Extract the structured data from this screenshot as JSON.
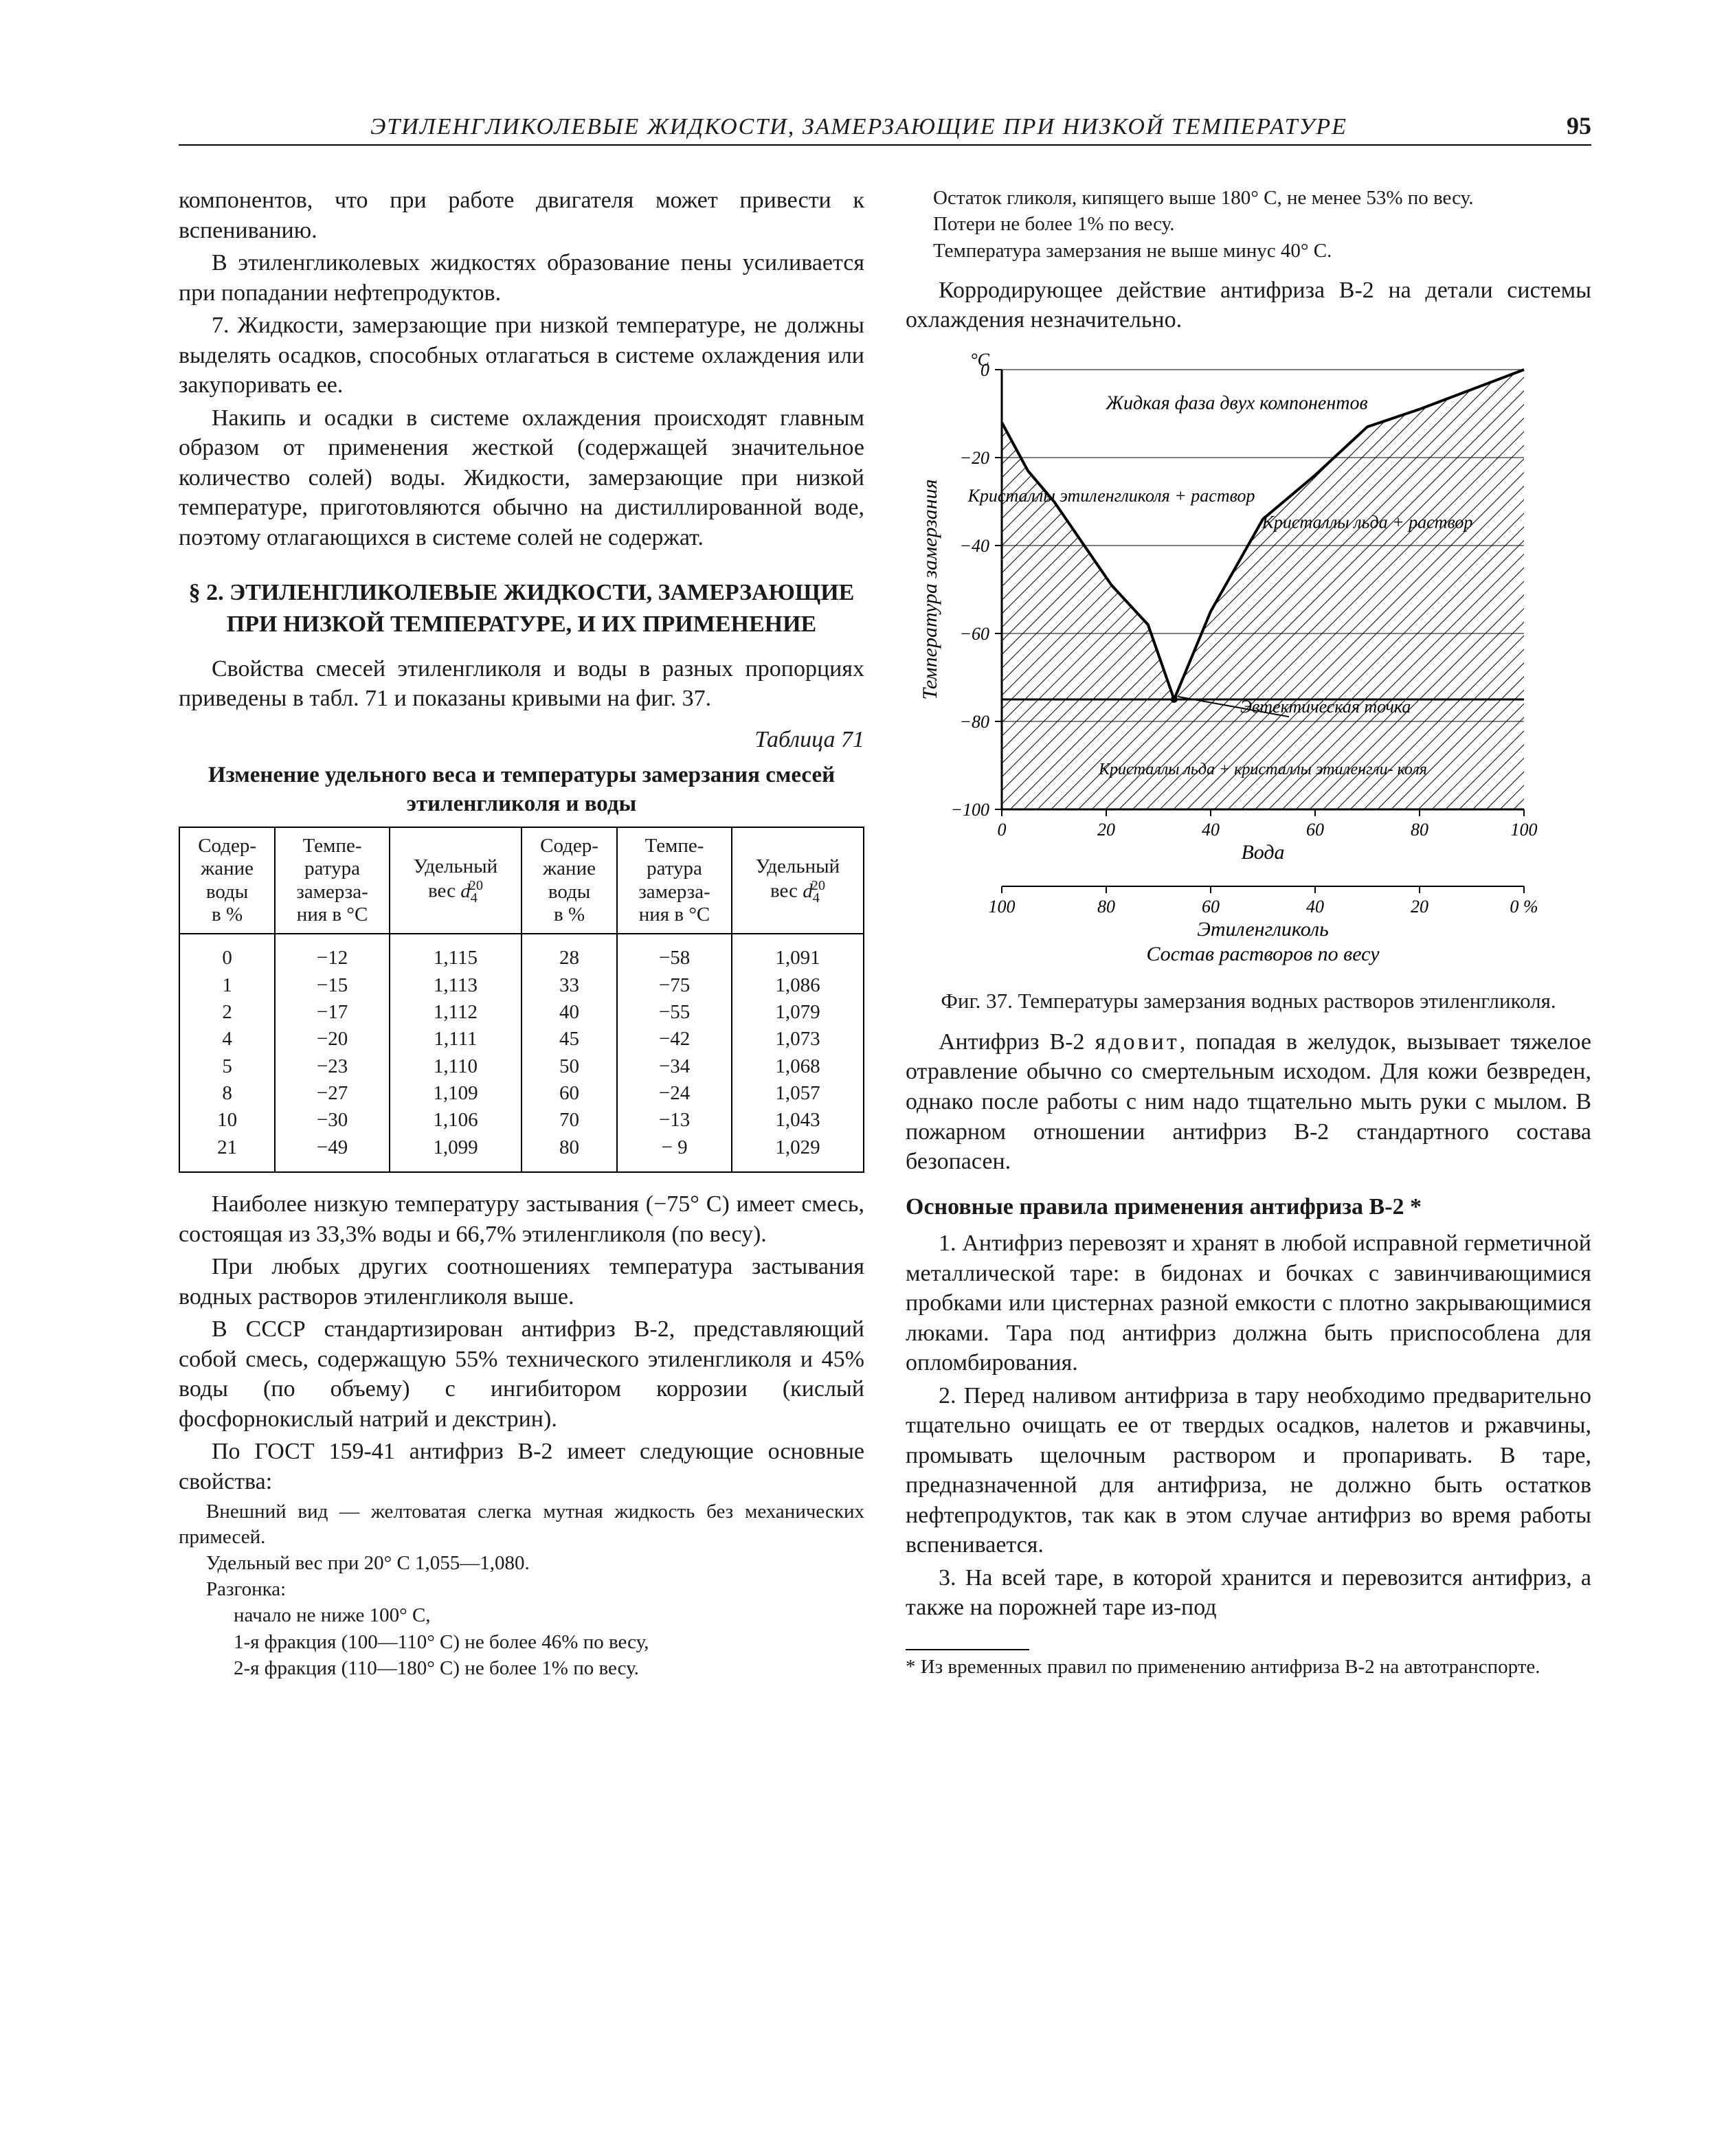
{
  "page": {
    "running_title": "ЭТИЛЕНГЛИКОЛЕВЫЕ ЖИДКОСТИ, ЗАМЕРЗАЮЩИЕ ПРИ НИЗКОЙ ТЕМПЕРАТУРЕ",
    "number": "95"
  },
  "left": {
    "p1": "компонентов, что при работе двигателя может привести к вспениванию.",
    "p2": "В этиленгликолевых жидкостях образование пены усиливается при попадании нефтепродуктов.",
    "p3": "7. Жидкости, замерзающие при низкой температуре, не должны выделять осадков, способных отлагаться в системе охлаждения или закупоривать ее.",
    "p4": "Накипь и осадки в системе охлаждения происходят главным образом от применения жесткой (содержащей значительное количество солей) воды. Жидкости, замерзающие при низкой температуре, приготовляются обычно на дистиллированной воде, поэтому отлагающихся в системе солей не содержат.",
    "section": "§ 2. ЭТИЛЕНГЛИКОЛЕВЫЕ ЖИДКОСТИ, ЗАМЕРЗАЮЩИЕ ПРИ НИЗКОЙ ТЕМПЕРАТУРЕ, И ИХ ПРИМЕНЕНИЕ",
    "p5": "Свойства смесей этиленгликоля и воды в разных пропорциях приведены в табл. 71 и показаны кривыми на фиг. 37.",
    "table_num": "Таблица 71",
    "table_caption": "Изменение удельного веса и температуры замерзания смесей этиленгликоля и воды",
    "headers": {
      "c1": "Содер-\nжание\nводы\nв %",
      "c2": "Темпе-\nратура\nзамерза-\nния в °C",
      "c3_pre": "Удельный\nвес ",
      "c4": "Содер-\nжание\nводы\nв %",
      "c5": "Темпе-\nратура\nзамерза-\nния в °C",
      "c6_pre": "Удельный\nвес "
    },
    "rows": [
      [
        "0",
        "−12",
        "1,115",
        "28",
        "−58",
        "1,091"
      ],
      [
        "1",
        "−15",
        "1,113",
        "33",
        "−75",
        "1,086"
      ],
      [
        "2",
        "−17",
        "1,112",
        "40",
        "−55",
        "1,079"
      ],
      [
        "4",
        "−20",
        "1,111",
        "45",
        "−42",
        "1,073"
      ],
      [
        "5",
        "−23",
        "1,110",
        "50",
        "−34",
        "1,068"
      ],
      [
        "8",
        "−27",
        "1,109",
        "60",
        "−24",
        "1,057"
      ],
      [
        "10",
        "−30",
        "1,106",
        "70",
        "−13",
        "1,043"
      ],
      [
        "21",
        "−49",
        "1,099",
        "80",
        "− 9",
        "1,029"
      ]
    ],
    "p6a": "Наиболее низкую температуру застывания (−75° C) имеет смесь, состоящая из 33,3% воды и 66,7% этиленгликоля (по весу).",
    "p7": "При любых других соотношениях температура застывания водных растворов этиленгликоля выше.",
    "p8": "В СССР стандартизирован антифриз В-2, представляющий собой смесь, содержащую 55% технического этиленгликоля и 45% воды (по объему) с ингибитором коррозии (кислый фосфорнокислый натрий и декстрин).",
    "p9": "По ГОСТ 159-41 антифриз В-2 имеет следующие основные свойства:",
    "small": {
      "s1": "Внешний вид — желтоватая слегка мутная жидкость без механических примесей.",
      "s2": "Удельный вес при 20° C 1,055—1,080.",
      "s3": "Разгонка:",
      "s4": "начало не ниже 100° C,",
      "s5": "1-я фракция (100—110° C) не более 46% по весу,",
      "s6": "2-я фракция (110—180° C) не более 1% по весу."
    }
  },
  "right": {
    "small_top": {
      "s1": "Остаток гликоля, кипящего выше 180° C, не менее 53% по весу.",
      "s2": "Потери не более 1% по весу.",
      "s3": "Температура замерзания не выше минус 40° C."
    },
    "p1": "Корродирующее действие антифриза В-2 на детали системы охлаждения незначительно.",
    "p2_a": "Антифриз В-2 ",
    "p2_b": "ядовит",
    "p2_c": ", попадая в желудок, вызывает тяжелое отравление обычно со смертельным исходом. Для кожи безвреден, однако после работы с ним надо тщательно мыть руки с мылом. В пожарном отношении антифриз В-2 стандартного состава безопасен.",
    "subhead": "Основные правила применения антифриза В-2 *",
    "p3": "1. Антифриз перевозят и хранят в любой исправной герметичной металлической таре: в бидонах и бочках с завинчивающимися пробками или цистернах разной емкости с плотно закрывающимися люками. Тара под антифриз должна быть приспособлена для опломбирования.",
    "p4": "2. Перед наливом антифриза в тару необходимо предварительно тщательно очищать ее от твердых осадков, налетов и ржавчины, промывать щелочным раствором и пропаривать. В таре, предназначенной для антифриза, не должно быть остатков нефтепродуктов, так как в этом случае антифриз во время работы вспенивается.",
    "p5": "3. На всей таре, в которой хранится и перевозится антифриз, а также на порожней таре из-под",
    "footnote": "* Из временных правил по применению антифриза В-2 на автотранспорте."
  },
  "fig": {
    "caption": "Фиг. 37. Температуры замерзания водных растворов этиленгликоля.",
    "y_label": "Температура замерзания",
    "y_unit": "°C",
    "x_top_label": "Вода",
    "x_bottom_label": "Этиленгликоль",
    "compo_label": "Состав растворов по весу",
    "region1": "Жидкая фаза двух компонентов",
    "region2": "Кристаллы этиленгликоля + раствор",
    "region3": "Кристаллы льда + раствор",
    "region4": "Эвтектическая точка",
    "region5": "Кристаллы льда + кристаллы этиленгли- коля",
    "y_ticks": [
      "0",
      "−20",
      "−40",
      "−60",
      "−80",
      "−100"
    ],
    "x_top_ticks": [
      "0",
      "20",
      "40",
      "60",
      "80",
      "100"
    ],
    "x_bottom_ticks": [
      "100",
      "80",
      "60",
      "40",
      "20",
      "0 %"
    ],
    "colors": {
      "bg": "#ffffff",
      "axis": "#000000",
      "grid": "#000000",
      "curve": "#000000"
    },
    "curve_left": [
      [
        0,
        -12
      ],
      [
        5,
        -23
      ],
      [
        10,
        -30
      ],
      [
        21,
        -49
      ],
      [
        28,
        -58
      ],
      [
        33,
        -75
      ]
    ],
    "curve_right": [
      [
        33,
        -75
      ],
      [
        40,
        -55
      ],
      [
        50,
        -34
      ],
      [
        60,
        -24
      ],
      [
        70,
        -13
      ],
      [
        80,
        -9
      ],
      [
        100,
        0
      ]
    ],
    "eutectic": [
      33,
      -75
    ],
    "font_size_labels": 26,
    "font_size_ticks": 26
  }
}
